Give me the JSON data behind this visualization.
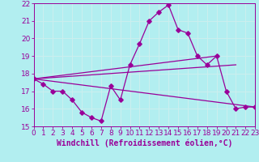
{
  "title": "",
  "xlabel": "Windchill (Refroidissement éolien,°C)",
  "ylabel": "",
  "background_color": "#b2eef0",
  "line_color": "#990099",
  "grid_color": "#cceeee",
  "xmin": 0,
  "xmax": 23,
  "ymin": 15,
  "ymax": 22,
  "yticks": [
    15,
    16,
    17,
    18,
    19,
    20,
    21,
    22
  ],
  "xticks": [
    0,
    1,
    2,
    3,
    4,
    5,
    6,
    7,
    8,
    9,
    10,
    11,
    12,
    13,
    14,
    15,
    16,
    17,
    18,
    19,
    20,
    21,
    22,
    23
  ],
  "line1_x": [
    0,
    1,
    2,
    3,
    4,
    5,
    6,
    7,
    8,
    9,
    10,
    11,
    12,
    13,
    14,
    15,
    16,
    17,
    18,
    19,
    20,
    21,
    22,
    23
  ],
  "line1_y": [
    17.7,
    17.4,
    17.0,
    17.0,
    16.5,
    15.8,
    15.5,
    15.3,
    17.3,
    16.5,
    18.5,
    19.7,
    21.0,
    21.5,
    21.9,
    20.5,
    20.3,
    19.0,
    18.5,
    19.0,
    17.0,
    16.0,
    16.1,
    16.1
  ],
  "line2_x": [
    0,
    19
  ],
  "line2_y": [
    17.7,
    19.0
  ],
  "line3_x": [
    0,
    21
  ],
  "line3_y": [
    17.7,
    18.5
  ],
  "line4_x": [
    0,
    23
  ],
  "line4_y": [
    17.7,
    16.1
  ],
  "tick_fontsize": 6.5,
  "label_fontsize": 7
}
